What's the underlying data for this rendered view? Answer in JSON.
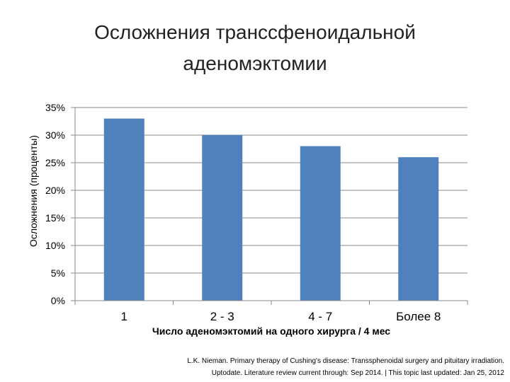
{
  "chart_data": {
    "type": "bar",
    "title_lines": [
      "Осложнения транссфеноидальной",
      "аденомэктомии"
    ],
    "categories": [
      "1",
      "2 - 3",
      "4 - 7",
      "Более 8"
    ],
    "values": [
      33,
      30,
      28,
      26
    ],
    "ylim": [
      0,
      35
    ],
    "yticks": [
      0,
      5,
      10,
      15,
      20,
      25,
      30,
      35
    ],
    "ytick_suffix": "%",
    "ylabel": "Осложнения (проценты)",
    "xlabel": "Число аденомэктомий на одного хирурга / 4 мес",
    "bar_color": "#4f81bd",
    "grid": true
  },
  "citation": {
    "line1": "L.K. Nieman. Primary therapy of Cushing's disease: Transsphenoidal surgery and pituitary irradiation.",
    "line2": "Uptodate. Literature review current through: Sep 2014. | This topic last updated: Jan 25, 2012"
  }
}
